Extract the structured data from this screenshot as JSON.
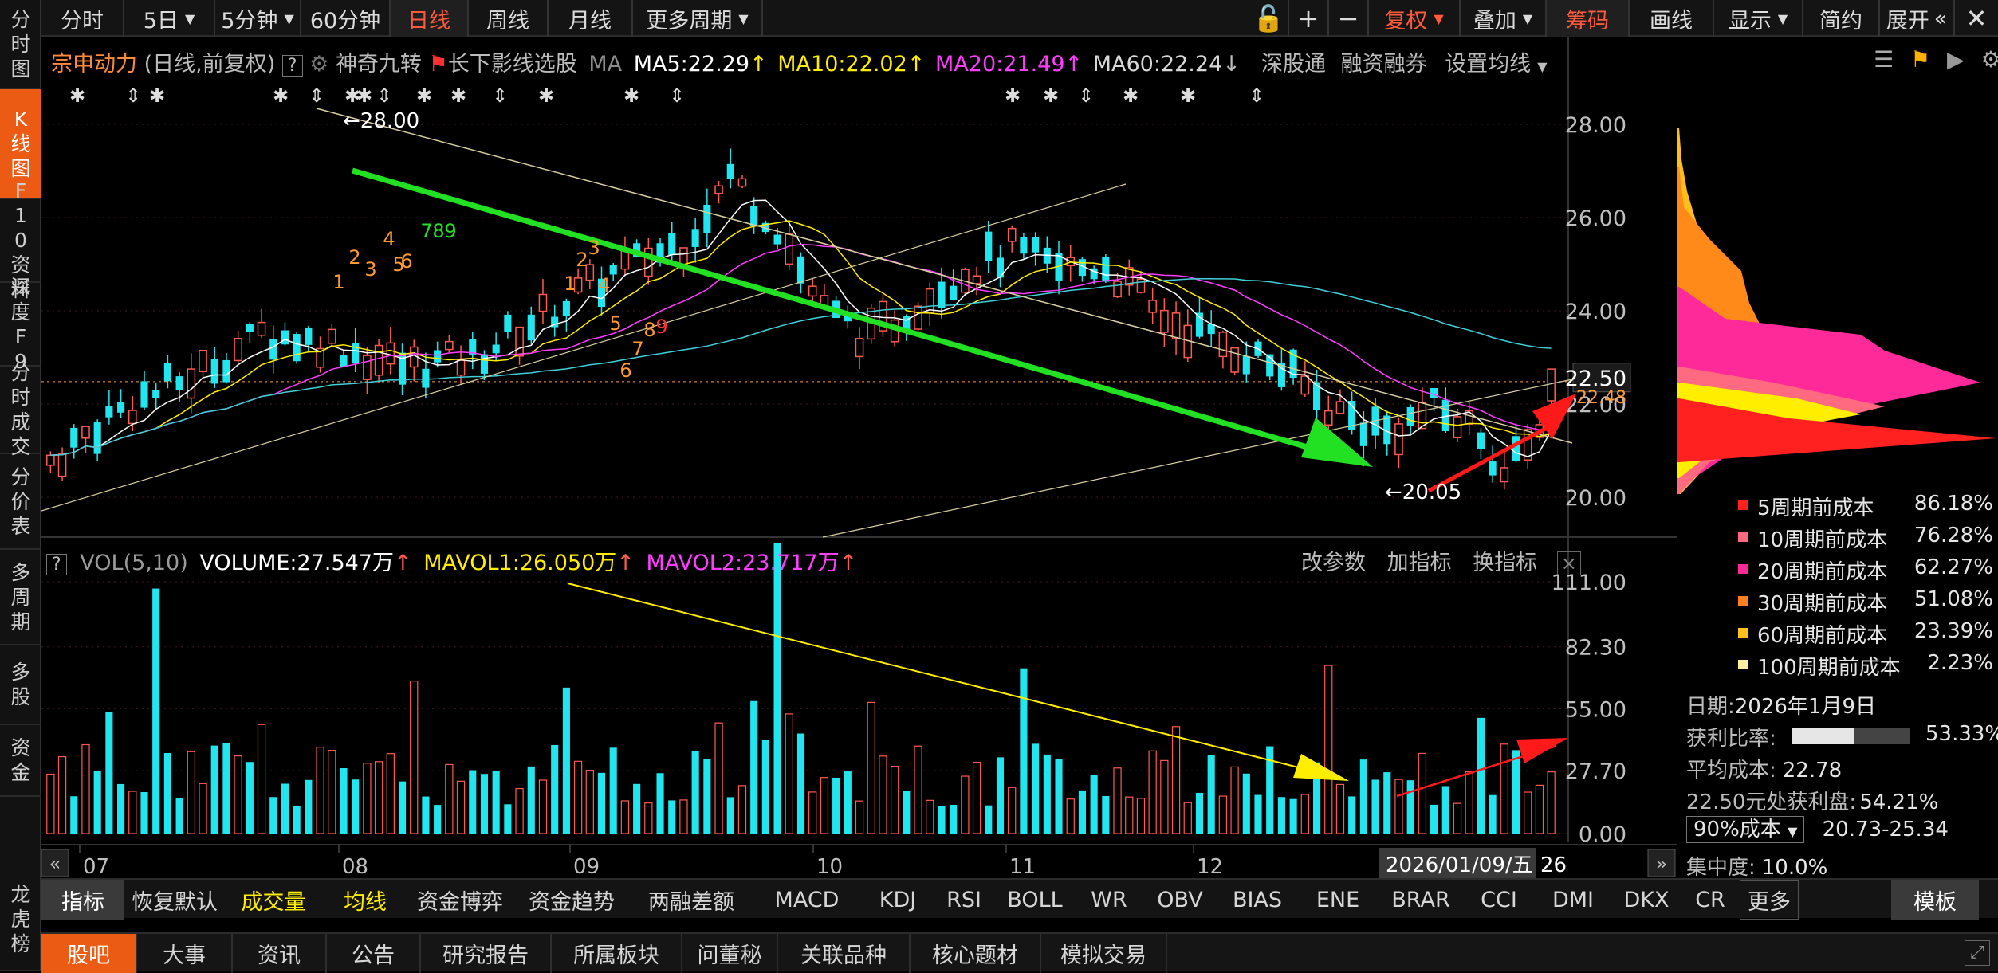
{
  "sidebar": {
    "items": [
      {
        "label": "分时图",
        "active": false
      },
      {
        "label": "K线图",
        "active": true
      },
      {
        "label": "F10资料",
        "active": false
      },
      {
        "label": "深度F9",
        "active": false
      },
      {
        "label": "分时成交",
        "active": false
      },
      {
        "label": "分价表",
        "active": false
      },
      {
        "label": "多周期",
        "active": false
      },
      {
        "label": "多股",
        "active": false
      },
      {
        "label": "资金",
        "active": false
      },
      {
        "label": "龙虎榜",
        "active": false
      }
    ]
  },
  "topbar": {
    "periods": [
      "分时",
      "5日",
      "5分钟",
      "60分钟",
      "日线",
      "周线",
      "月线",
      "更多周期"
    ],
    "active_period": "日线",
    "right_buttons": [
      "复权",
      "叠加",
      "筹码",
      "画线",
      "显示",
      "简约",
      "展开"
    ],
    "lock_icon": "lock-icon",
    "zoom_in_icon": "plus-icon",
    "zoom_out_icon": "minus-icon",
    "close_icon": "close-icon",
    "collapse_icon": "double-chevron-left-icon"
  },
  "chart_header": {
    "stock_name": "宗申动力",
    "mode": "(日线,前复权)",
    "help": "?",
    "strategy1": "神奇九转",
    "strategy2": "长下影线选股",
    "ma_label": "MA",
    "ma5": "MA5:22.29",
    "ma10": "MA10:22.02",
    "ma20": "MA20:21.49",
    "ma60": "MA60:22.24",
    "connect": "深股通",
    "margin": "融资融券",
    "set_ma": "设置均线"
  },
  "vol_header": {
    "help": "?",
    "label": "VOL(5,10)",
    "volume": "VOLUME:27.547万",
    "mavol1": "MAVOL1:26.050万",
    "mavol2": "MAVOL2:23.717万",
    "change_param": "改参数",
    "add_ind": "加指标",
    "switch_ind": "换指标"
  },
  "colors": {
    "up": "#ff5a4f",
    "down": "#21e6f0",
    "ma5": "#ffffff",
    "ma10": "#ffee00",
    "ma20": "#ff3cff",
    "ma60": "#3fd0d8",
    "accent": "#ec5b14"
  },
  "chart_data": {
    "type": "candlestick",
    "price_axis": {
      "ticks": [
        "28.00",
        "26.00",
        "24.00",
        "22.00",
        "20.00"
      ],
      "range": [
        19.2,
        28.9
      ]
    },
    "current_price": "22.50",
    "ma_level": "22.48",
    "high_label": "28.00",
    "low_label": "20.05",
    "volume_axis": {
      "ticks": [
        "111.00",
        "82.30",
        "55.00",
        "27.70",
        "0.00"
      ],
      "range": [
        0,
        111
      ]
    },
    "x_ticks": [
      "07",
      "08",
      "09",
      "10",
      "11",
      "12"
    ],
    "date_cursor": "2026/01/09/五",
    "date_cursor_suffix": "26",
    "nine_turn_up": [
      "1",
      "2",
      "3",
      "4",
      "5",
      "6",
      "7",
      "8",
      "9"
    ],
    "nine_turn_down": [
      "1",
      "2",
      "3",
      "4",
      "5",
      "6",
      "7",
      "8",
      "9"
    ]
  },
  "cost": {
    "rows": [
      {
        "label": "5周期前成本",
        "value": "86.18%",
        "color": "#ff2020"
      },
      {
        "label": "10周期前成本",
        "value": "76.28%",
        "color": "#ff6a80"
      },
      {
        "label": "20周期前成本",
        "value": "62.27%",
        "color": "#ff2a9a"
      },
      {
        "label": "30周期前成本",
        "value": "51.08%",
        "color": "#ff8020"
      },
      {
        "label": "60周期前成本",
        "value": "23.39%",
        "color": "#ffc020"
      },
      {
        "label": "100周期前成本",
        "value": "2.23%",
        "color": "#fff0a0"
      }
    ],
    "date_label": "日期:",
    "date_value": "2026年1月9日",
    "profit_label": "获利比率:",
    "profit_value": "53.33%",
    "profit_ratio": 0.5333,
    "avg_label": "平均成本:",
    "avg_value": "22.78",
    "at_price_label": "22.50元处获利盘:",
    "at_price_value": "54.21%",
    "range_select": "90%成本",
    "range_value": "20.73-25.34",
    "concentration_label": "集中度:",
    "concentration_value": "10.0%"
  },
  "indicators": {
    "tabs": [
      "指标",
      "恢复默认",
      "成交量",
      "均线",
      "资金博弈",
      "资金趋势",
      "两融差额",
      "MACD",
      "KDJ",
      "RSI",
      "BOLL",
      "WR",
      "OBV",
      "BIAS",
      "ENE",
      "BRAR",
      "CCI",
      "DMI",
      "DKX",
      "CR",
      "更多"
    ],
    "template": "模板"
  },
  "bottom": {
    "tabs": [
      "股吧",
      "大事",
      "资讯",
      "公告",
      "研究报告",
      "所属板块",
      "问董秘",
      "关联品种",
      "核心题材",
      "模拟交易"
    ]
  }
}
